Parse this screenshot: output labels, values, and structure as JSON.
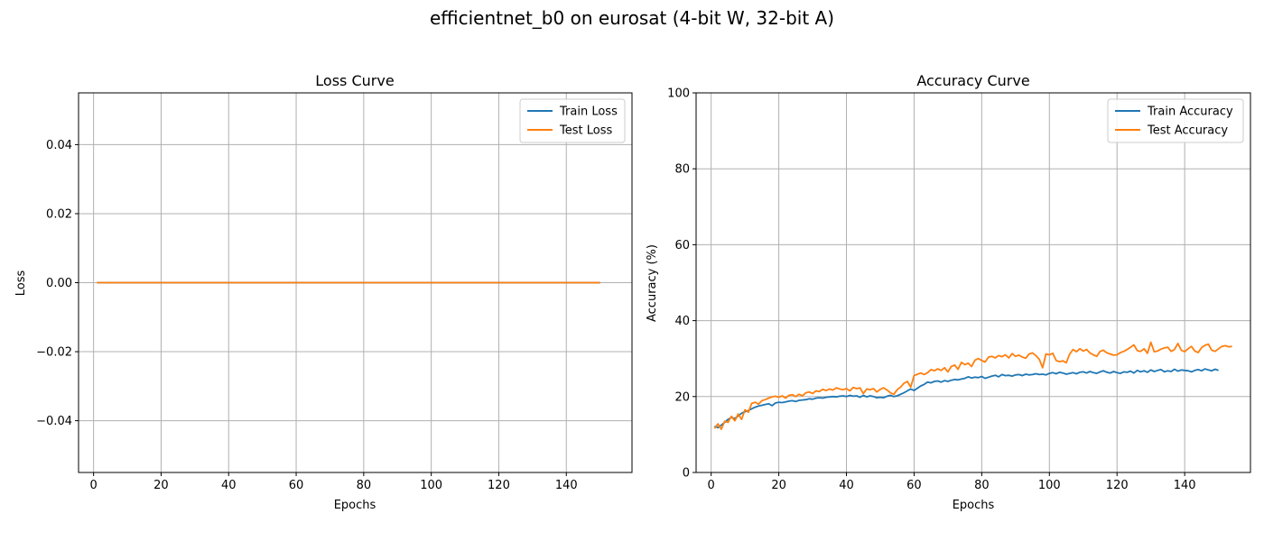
{
  "figure": {
    "suptitle": "efficientnet_b0 on eurosat (4-bit W, 32-bit A)"
  },
  "colors": {
    "train": "#1f77b4",
    "test": "#ff7f0e",
    "grid": "#b0b0b0",
    "axes": "#000000",
    "legend_border": "#cccccc"
  },
  "chart_data": [
    {
      "type": "line",
      "title": "Loss Curve",
      "xlabel": "Epochs",
      "ylabel": "Loss",
      "xlim": [
        -4.45,
        159.45
      ],
      "ylim": [
        -0.055,
        0.055
      ],
      "xticks": [
        0,
        20,
        40,
        60,
        80,
        100,
        120,
        140
      ],
      "yticks": [
        -0.04,
        -0.02,
        0.0,
        0.02,
        0.04
      ],
      "ytick_labels": [
        "−0.04",
        "−0.02",
        "0.00",
        "0.02",
        "0.04"
      ],
      "grid": true,
      "legend_position": "top-right",
      "series": [
        {
          "name": "Train Loss",
          "color_key": "train",
          "x_start": 1,
          "x_end": 150,
          "constant": 0.0
        },
        {
          "name": "Test Loss",
          "color_key": "test",
          "x_start": 1,
          "x_end": 150,
          "constant": 0.0
        }
      ]
    },
    {
      "type": "line",
      "title": "Accuracy Curve",
      "xlabel": "Epochs",
      "ylabel": "Accuracy (%)",
      "xlim": [
        -4.45,
        159.45
      ],
      "ylim": [
        0,
        100
      ],
      "xticks": [
        0,
        20,
        40,
        60,
        80,
        100,
        120,
        140
      ],
      "yticks": [
        0,
        20,
        40,
        60,
        80,
        100
      ],
      "ytick_labels": [
        "0",
        "20",
        "40",
        "60",
        "80",
        "100"
      ],
      "grid": true,
      "legend_position": "top-right",
      "series": [
        {
          "name": "Train Accuracy",
          "color_key": "train",
          "x_start": 1,
          "values": [
            12.2,
            11.8,
            12.5,
            13.2,
            14.0,
            14.5,
            14.2,
            14.9,
            15.6,
            16.0,
            16.3,
            16.8,
            17.2,
            17.5,
            17.7,
            17.9,
            18.1,
            17.6,
            18.3,
            18.5,
            18.4,
            18.6,
            18.8,
            18.9,
            18.7,
            19.0,
            19.1,
            19.2,
            19.4,
            19.3,
            19.6,
            19.7,
            19.6,
            19.8,
            19.9,
            20.0,
            19.9,
            20.1,
            20.2,
            20.0,
            20.3,
            20.1,
            20.2,
            19.8,
            20.3,
            19.9,
            20.2,
            20.0,
            19.7,
            19.8,
            19.7,
            20.1,
            20.3,
            20.0,
            20.2,
            20.6,
            21.0,
            21.5,
            22.0,
            21.6,
            22.2,
            22.8,
            23.2,
            23.8,
            23.6,
            24.0,
            24.1,
            23.8,
            24.2,
            24.0,
            24.3,
            24.5,
            24.4,
            24.6,
            24.8,
            25.2,
            24.9,
            25.1,
            25.0,
            25.3,
            24.8,
            25.1,
            25.4,
            25.6,
            25.2,
            25.8,
            25.5,
            25.6,
            25.4,
            25.7,
            25.8,
            25.5,
            25.9,
            25.7,
            25.8,
            26.0,
            25.8,
            25.9,
            25.7,
            26.1,
            26.3,
            26.0,
            26.4,
            26.2,
            25.9,
            26.1,
            26.3,
            26.0,
            26.4,
            26.5,
            26.2,
            26.6,
            26.3,
            26.1,
            26.5,
            26.8,
            26.4,
            26.2,
            26.6,
            26.3,
            26.1,
            26.5,
            26.4,
            26.7,
            26.2,
            26.9,
            26.5,
            26.8,
            26.4,
            27.0,
            26.6,
            26.9,
            27.1,
            26.5,
            26.8,
            26.6,
            27.2,
            26.7,
            27.0,
            26.9,
            26.8,
            26.5,
            26.9,
            27.1,
            26.8,
            27.3,
            27.0,
            26.8,
            27.2,
            26.9
          ],
          "values_note_trailing": [
            26.9
          ]
        },
        {
          "name": "Test Accuracy",
          "color_key": "test",
          "x_start": 1,
          "values": [
            11.6,
            12.8,
            11.4,
            13.5,
            13.2,
            14.8,
            13.6,
            15.4,
            14.0,
            16.5,
            15.9,
            18.2,
            18.5,
            18.0,
            18.9,
            19.2,
            19.6,
            19.9,
            20.1,
            19.8,
            20.2,
            19.6,
            20.3,
            20.5,
            20.0,
            20.6,
            20.2,
            21.0,
            21.2,
            20.8,
            21.5,
            21.3,
            21.9,
            21.6,
            22.0,
            21.7,
            22.3,
            22.0,
            21.8,
            22.1,
            21.5,
            22.4,
            22.1,
            22.3,
            20.8,
            22.0,
            21.8,
            22.1,
            21.2,
            21.9,
            22.3,
            21.7,
            21.0,
            20.6,
            21.8,
            22.5,
            23.5,
            24.0,
            22.5,
            25.5,
            25.9,
            26.2,
            25.8,
            26.3,
            27.1,
            26.8,
            27.3,
            26.9,
            27.6,
            26.5,
            27.9,
            28.3,
            27.2,
            29.0,
            28.4,
            28.8,
            27.9,
            29.6,
            30.0,
            29.5,
            29.1,
            30.4,
            30.6,
            30.2,
            30.8,
            30.5,
            31.0,
            30.2,
            31.3,
            30.6,
            30.9,
            30.4,
            30.1,
            31.2,
            31.5,
            30.8,
            29.8,
            27.6,
            31.2,
            31.0,
            31.4,
            29.5,
            29.2,
            29.4,
            28.9,
            31.2,
            32.4,
            31.8,
            32.6,
            32.0,
            32.4,
            31.5,
            31.0,
            30.6,
            31.9,
            32.2,
            31.5,
            31.2,
            30.9,
            31.0,
            31.6,
            31.9,
            32.4,
            33.0,
            33.6,
            32.1,
            31.9,
            32.6,
            31.4,
            34.3,
            31.8,
            32.0,
            32.5,
            32.8,
            33.0,
            31.9,
            32.4,
            34.0,
            32.2,
            31.8,
            32.6,
            33.2,
            32.0,
            31.6,
            32.9,
            33.5,
            33.8,
            32.2,
            31.9,
            32.6,
            33.2,
            33.4,
            33.1,
            33.2
          ]
        }
      ]
    }
  ]
}
